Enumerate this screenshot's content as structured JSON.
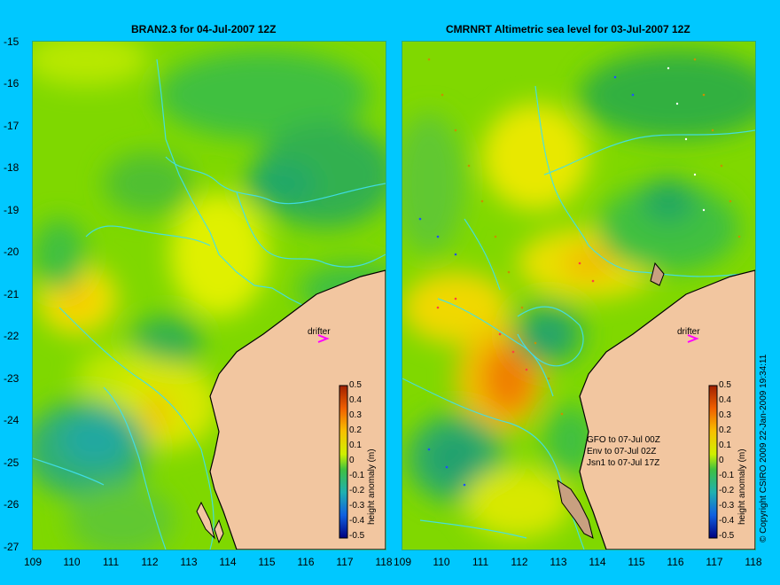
{
  "titles": {
    "left": "BRAN2.3  for 04-Jul-2007 12Z",
    "right": "CMRNRT Altimetric sea level  for 03-Jul-2007 12Z"
  },
  "axes": {
    "latitudes": [
      "-15",
      "-16",
      "-17",
      "-18",
      "-19",
      "-20",
      "-21",
      "-22",
      "-23",
      "-24",
      "-25",
      "-26",
      "-27"
    ],
    "longitudes": [
      "109",
      "110",
      "111",
      "112",
      "113",
      "114",
      "115",
      "116",
      "117",
      "118"
    ],
    "right_longitudes": [
      "109",
      "110",
      "111",
      "112",
      "113",
      "114",
      "115",
      "116",
      "117",
      "118"
    ]
  },
  "colorbar": {
    "title": "height anomaly (m)",
    "ticks": [
      "0.5",
      "0.4",
      "0.3",
      "0.2",
      "0.1",
      "0",
      "-0.1",
      "-0.2",
      "-0.3",
      "-0.4",
      "-0.5"
    ]
  },
  "drifter_label": "drifter",
  "right_legend": [
    "GFO to 07-Jul 00Z",
    "Env to 07-Jul 02Z",
    "Jsn1 to 07-Jul 17Z"
  ],
  "copyright": "© Copyright CSIRO 2009    22-Jan-2009 19:34:11",
  "colors": {
    "background": "#00c8ff",
    "land": "#f2c6a0",
    "coast": "#000000",
    "bathymetry": "#40e0f0",
    "drifter_marker": "#ff00ff"
  }
}
